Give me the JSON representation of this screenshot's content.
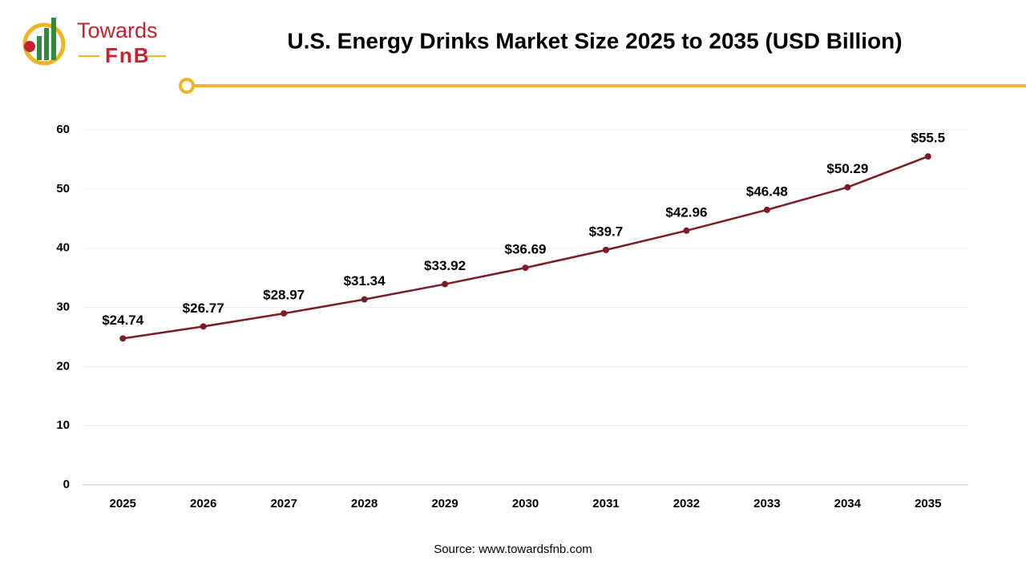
{
  "logo": {
    "line1": "Towards",
    "line2": "FnB"
  },
  "chart_data": {
    "type": "line",
    "title": "U.S. Energy Drinks Market Size 2025 to 2035 (USD Billion)",
    "categories": [
      "2025",
      "2026",
      "2027",
      "2028",
      "2029",
      "2030",
      "2031",
      "2032",
      "2033",
      "2034",
      "2035"
    ],
    "values": [
      24.74,
      26.77,
      28.97,
      31.34,
      33.92,
      36.69,
      39.7,
      42.96,
      46.48,
      50.29,
      55.5
    ],
    "value_labels": [
      "$24.74",
      "$26.77",
      "$28.97",
      "$31.34",
      "$33.92",
      "$36.69",
      "$39.7",
      "$42.96",
      "$46.48",
      "$50.29",
      "$55.5"
    ],
    "color": "#7b1c24",
    "ylim": [
      0,
      60
    ],
    "yticks": [
      0,
      10,
      20,
      30,
      40,
      50,
      60
    ],
    "grid": true,
    "source": "Source: www.towardsfnb.com"
  }
}
